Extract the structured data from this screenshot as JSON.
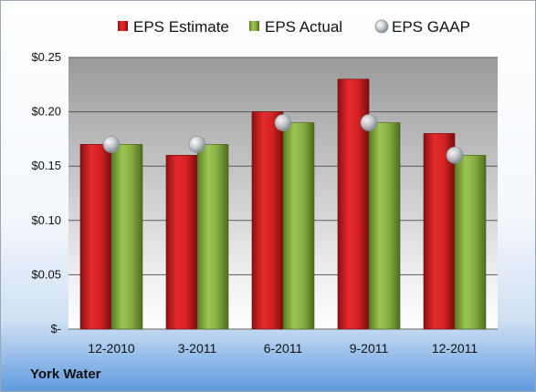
{
  "company": "York Water",
  "chart_data": {
    "type": "bar",
    "categories": [
      "12-2010",
      "3-2011",
      "6-2011",
      "9-2011",
      "12-2011"
    ],
    "series": [
      {
        "name": "EPS Estimate",
        "kind": "bar",
        "color": "#cc1f22",
        "values": [
          0.17,
          0.16,
          0.2,
          0.23,
          0.18
        ]
      },
      {
        "name": "EPS Actual",
        "kind": "bar",
        "color": "#7fa33a",
        "values": [
          0.17,
          0.17,
          0.19,
          0.19,
          0.16
        ]
      },
      {
        "name": "EPS GAAP",
        "kind": "marker",
        "color": "#b9bec6",
        "values": [
          0.17,
          0.17,
          0.19,
          0.19,
          0.16
        ]
      }
    ],
    "yticks": [
      {
        "value": 0.25,
        "label": "$0.25"
      },
      {
        "value": 0.2,
        "label": "$0.20"
      },
      {
        "value": 0.15,
        "label": "$0.15"
      },
      {
        "value": 0.1,
        "label": "$0.10"
      },
      {
        "value": 0.05,
        "label": "$0.05"
      },
      {
        "value": 0,
        "label": "$-"
      }
    ],
    "ylim": [
      0,
      0.25
    ],
    "grid": true,
    "legend_position": "top"
  }
}
